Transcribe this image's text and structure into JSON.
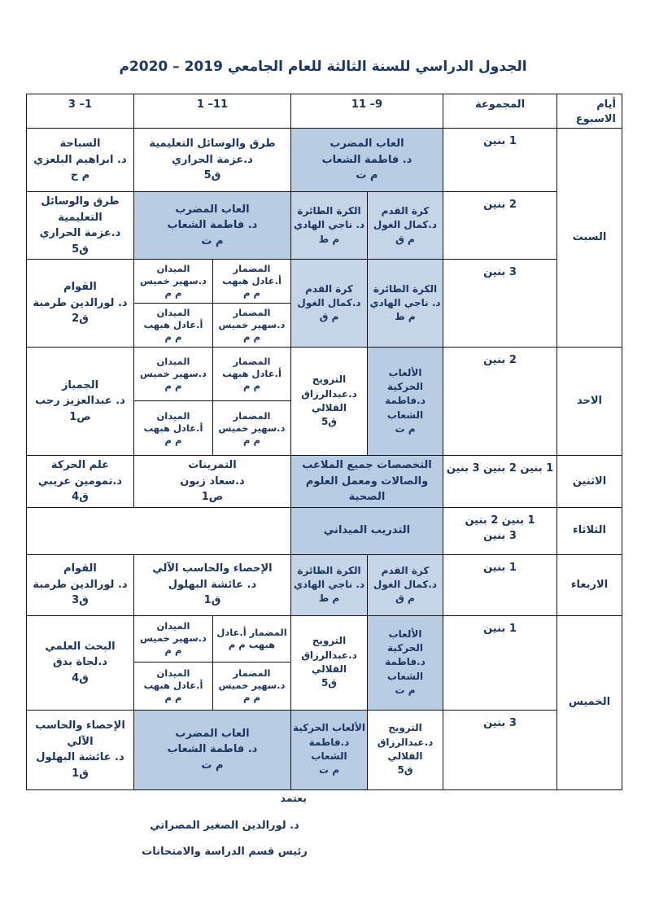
{
  "title": "الجدول الدراسي للسنة الثالثة للعام الجامعي 2019 – 2020م",
  "colors": {
    "highlight": "#b8cce4",
    "highlight_light": "#c6d4e7",
    "text": "#1c355e",
    "border": "#151515"
  },
  "header": {
    "days": [
      "أيام",
      "الاسبوع"
    ],
    "group": "المجموعة",
    "p1": "9– 11",
    "p2": "11– 1",
    "p3": "1– 3"
  },
  "days": {
    "sat": "السبت",
    "sun": "الاحد",
    "mon": "الاثنين",
    "tue": "الثلاثاء",
    "wed": "الاربعاء",
    "thu": "الخميس"
  },
  "rows": {
    "r1": {
      "group": "1 بنين",
      "p1": [
        "العاب المضرب",
        "د. فاطمة الشعاب",
        "م ت"
      ],
      "p2": [
        "طرق والوسائل التعليمية",
        "د.عزمة الحراري",
        "ق5"
      ],
      "p3": [
        "السباحة",
        "د. ابراهيم البلعزي",
        "م ح"
      ]
    },
    "r2": {
      "group": "2 بنين",
      "p1r": [
        "كرة القدم",
        "د.كمال الغول",
        "م ق"
      ],
      "p1l": [
        "الكرة الطائرة",
        "د. ناجي الهادي",
        "م ط"
      ],
      "p2": [
        "العاب المضرب",
        "د. فاطمة الشعاب",
        "م ت"
      ],
      "p3": [
        "طرق والوسائل",
        "التعليمية",
        "د.عزمة الحراري",
        "ق5"
      ]
    },
    "r3": {
      "group": "3 بنين",
      "p1r": [
        "الكرة الطائرة",
        "د. ناجي الهادي",
        "م ط"
      ],
      "p1l": [
        "كرة القدم",
        "د.كمال الغول",
        "م ق"
      ],
      "p2": {
        "tr": [
          "المضمار",
          "أ.عادل هبهب",
          "م م"
        ],
        "tl": [
          "الميدان",
          "د.سهير خميس",
          "م م"
        ],
        "br": [
          "المضمار",
          "د.سهير خميس",
          "م م"
        ],
        "bl": [
          "الميدان",
          "أ.عادل هبهب",
          "م م"
        ]
      },
      "p3": [
        "القوام",
        "د. لورالدين طرمبة",
        "ق2"
      ]
    },
    "r4": {
      "group": "2 بنين",
      "p1r": [
        "الألعاب الحركية",
        "د.فاطمة",
        "الشعاب",
        "م ت"
      ],
      "p1l": [
        "الترويح",
        "د.عبدالرزاق",
        "القلالي",
        "ق5"
      ],
      "p2": {
        "tr": [
          "المضمار",
          "أ.عادل هبهب",
          "م م"
        ],
        "tl": [
          "الميدان",
          "د.سهير خميس",
          "م م"
        ],
        "br": [
          "المضمار",
          "د.سهير خميس",
          "م م"
        ],
        "bl": [
          "الميدان",
          "أ.عادل هبهب",
          "م م"
        ]
      },
      "p3": [
        "الجمباز",
        "د. عبدالعزيز رجب",
        "ص1"
      ]
    },
    "r5": {
      "group": "1 بنين  2 بنين 3 بنين",
      "p1": [
        "التخصصات جميع الملاعب",
        "والصالات ومعمل العلوم الصحية"
      ],
      "p2": [
        "التمرينات",
        "د.سعاد زبون",
        "ص1"
      ],
      "p3": [
        "علم الحركة",
        "د.تمومين عريبي",
        "ق4"
      ]
    },
    "r6": {
      "group": [
        "1 بنين  2 بنين",
        "3 بنين"
      ],
      "p1": [
        "التدريب الميداني"
      ]
    },
    "r7": {
      "group": "1 بنين",
      "p1r": [
        "كرة القدم",
        "د.كمال الغول",
        "م ق"
      ],
      "p1l": [
        "الكرة الطائرة",
        "د. ناجي الهادي",
        "م ط"
      ],
      "p2": [
        "الإحصاء والحاسب الآلي",
        "د. عائشة البهلول",
        "ق1"
      ],
      "p3": [
        "القوام",
        "د. لورالدين طرمبة",
        "ق3"
      ]
    },
    "r8": {
      "group": "1 بنين",
      "p1r": [
        "الألعاب الحركية",
        "د.فاطمة الشعاب",
        "م ت"
      ],
      "p1l": [
        "الترويح",
        "د.عبدالرزاق",
        "القلالي",
        "ق5"
      ],
      "p2": {
        "tr": [
          "المضمار أ.عادل",
          "هبهب   م م"
        ],
        "tl": [
          "الميدان",
          "د.سهير خميس",
          "م م"
        ],
        "br": [
          "المضمار",
          "د.سهير خميس",
          "م م"
        ],
        "bl": [
          "الميدان",
          "أ.عادل هبهب",
          "م م"
        ]
      },
      "p3": [
        "البحث العلمي",
        "د.لجاة بدق",
        "ق4"
      ]
    },
    "r9": {
      "group": "3 بنين",
      "p1r": [
        "الترويح",
        "د.عبدالرزاق",
        "القلالي",
        "ق5"
      ],
      "p1l": [
        "الألعاب الحركية",
        "د.فاطمة",
        "الشعاب",
        "م ت"
      ],
      "p2": [
        "العاب المضرب",
        "د. فاطمة الشعاب",
        "م ت"
      ],
      "p3": [
        "الإحصاء والحاسب",
        "الآلي",
        "د. عائشة البهلول",
        "ق1"
      ]
    }
  },
  "footer": {
    "stamp": "يعتمد",
    "name": "د. لورالدين الصغير المصراتي",
    "role": "رئيس قسم الدراسة والامتحانات"
  }
}
